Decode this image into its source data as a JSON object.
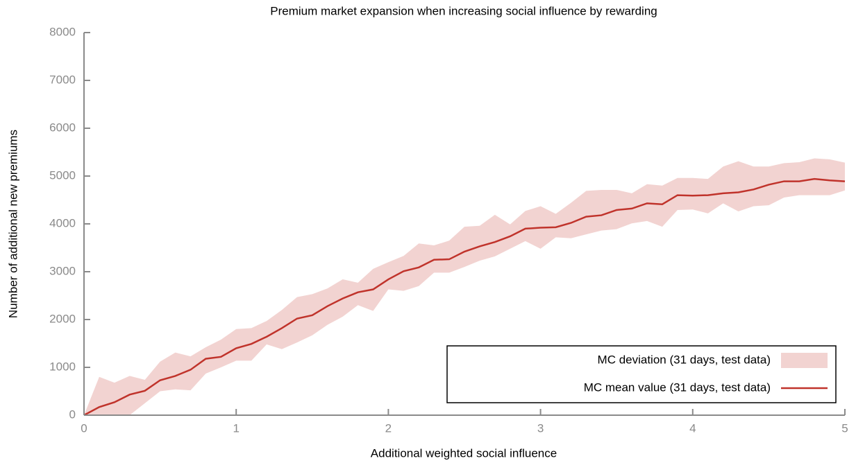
{
  "chart_data": {
    "type": "line",
    "title": "Premium market expansion when increasing social influence by rewarding",
    "x_label": "Additional weighted social influence",
    "y_label": "Number of additional new premiums",
    "x": [
      0,
      0.1,
      0.2,
      0.3,
      0.4,
      0.5,
      0.6,
      0.7,
      0.8,
      0.9,
      1,
      1.1,
      1.2,
      1.3,
      1.4,
      1.5,
      1.6,
      1.7,
      1.8,
      1.9,
      2,
      2.1,
      2.2,
      2.3,
      2.4,
      2.5,
      2.6,
      2.7,
      2.8,
      2.9,
      3,
      3.1,
      3.2,
      3.3,
      3.4,
      3.5,
      3.6,
      3.7,
      3.8,
      3.9,
      4,
      4.1,
      4.2,
      4.3,
      4.4,
      4.5,
      4.6,
      4.7,
      4.8,
      4.9,
      5
    ],
    "series": [
      {
        "name": "MC deviation (31 days, test data)",
        "color": "#f2d3d1",
        "upper": [
          0,
          800,
          680,
          820,
          740,
          1120,
          1310,
          1230,
          1420,
          1580,
          1800,
          1820,
          1970,
          2200,
          2470,
          2530,
          2650,
          2840,
          2770,
          3060,
          3200,
          3330,
          3590,
          3550,
          3650,
          3940,
          3960,
          4190,
          3990,
          4270,
          4370,
          4210,
          4440,
          4690,
          4710,
          4710,
          4640,
          4830,
          4800,
          4960,
          4960,
          4940,
          5200,
          5310,
          5200,
          5200,
          5270,
          5290,
          5370,
          5350,
          5280
        ],
        "lower": [
          0,
          0,
          0,
          0,
          250,
          500,
          540,
          520,
          870,
          1000,
          1140,
          1140,
          1480,
          1380,
          1520,
          1670,
          1890,
          2060,
          2300,
          2180,
          2630,
          2600,
          2700,
          2980,
          2980,
          3100,
          3230,
          3320,
          3480,
          3640,
          3480,
          3720,
          3700,
          3780,
          3860,
          3890,
          4010,
          4060,
          3940,
          4290,
          4300,
          4220,
          4430,
          4260,
          4370,
          4390,
          4550,
          4600,
          4600,
          4600,
          4700
        ]
      },
      {
        "name": "MC mean value (31 days, test data)",
        "color": "#c0332b",
        "values": [
          0,
          170,
          270,
          430,
          510,
          730,
          820,
          950,
          1180,
          1220,
          1400,
          1490,
          1640,
          1820,
          2020,
          2090,
          2280,
          2440,
          2570,
          2630,
          2840,
          3010,
          3090,
          3250,
          3260,
          3420,
          3530,
          3620,
          3740,
          3900,
          3920,
          3930,
          4020,
          4150,
          4180,
          4290,
          4320,
          4430,
          4410,
          4600,
          4590,
          4600,
          4640,
          4660,
          4720,
          4820,
          4890,
          4890,
          4940,
          4910,
          4890
        ]
      }
    ],
    "xlim": [
      0,
      5
    ],
    "xticks": [
      0,
      1,
      2,
      3,
      4,
      5
    ],
    "ylim": [
      0,
      8000
    ],
    "yticks": [
      0,
      1000,
      2000,
      3000,
      4000,
      5000,
      6000,
      7000,
      8000
    ],
    "grid": false,
    "legend": "lower right"
  }
}
